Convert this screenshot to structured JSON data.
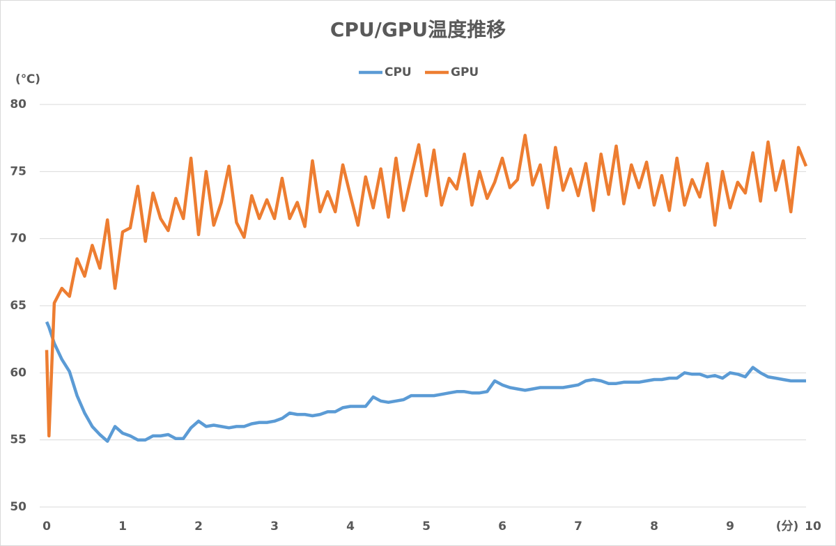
{
  "chart_data": {
    "type": "line",
    "title": "CPU/GPU温度推移",
    "y_label": "(℃)",
    "x_label": "(分)",
    "x": [
      0,
      0.03,
      0.1,
      0.2,
      0.3,
      0.4,
      0.5,
      0.6,
      0.7,
      0.8,
      0.9,
      1,
      1.1,
      1.2,
      1.3,
      1.4,
      1.5,
      1.6,
      1.7,
      1.8,
      1.9,
      2,
      2.1,
      2.2,
      2.3,
      2.4,
      2.5,
      2.6,
      2.7,
      2.8,
      2.9,
      3,
      3.1,
      3.2,
      3.3,
      3.4,
      3.5,
      3.6,
      3.7,
      3.8,
      3.9,
      4,
      4.1,
      4.2,
      4.3,
      4.4,
      4.5,
      4.6,
      4.7,
      4.8,
      4.9,
      5,
      5.1,
      5.2,
      5.3,
      5.4,
      5.5,
      5.6,
      5.7,
      5.8,
      5.9,
      6,
      6.1,
      6.2,
      6.3,
      6.4,
      6.5,
      6.6,
      6.7,
      6.8,
      6.9,
      7,
      7.1,
      7.2,
      7.3,
      7.4,
      7.5,
      7.6,
      7.7,
      7.8,
      7.9,
      8,
      8.1,
      8.2,
      8.3,
      8.4,
      8.5,
      8.6,
      8.7,
      8.8,
      8.9,
      9,
      9.1,
      9.2,
      9.3,
      9.4,
      9.5,
      9.6,
      9.7,
      9.8,
      9.9,
      10
    ],
    "series": [
      {
        "name": "CPU",
        "color": "#5b9bd5",
        "values": [
          63.8,
          63.4,
          62.2,
          61,
          60.1,
          58.3,
          57,
          56,
          55.4,
          54.9,
          56,
          55.5,
          55.3,
          55,
          55,
          55.3,
          55.3,
          55.4,
          55.1,
          55.1,
          55.9,
          56.4,
          56,
          56.1,
          56,
          55.9,
          56,
          56,
          56.2,
          56.3,
          56.3,
          56.4,
          56.6,
          57,
          56.9,
          56.9,
          56.8,
          56.9,
          57.1,
          57.1,
          57.4,
          57.5,
          57.5,
          57.5,
          58.2,
          57.9,
          57.8,
          57.9,
          58,
          58.3,
          58.3,
          58.3,
          58.3,
          58.4,
          58.5,
          58.6,
          58.6,
          58.5,
          58.5,
          58.6,
          59.4,
          59.1,
          58.9,
          58.8,
          58.7,
          58.8,
          58.9,
          58.9,
          58.9,
          58.9,
          59,
          59.1,
          59.4,
          59.5,
          59.4,
          59.2,
          59.2,
          59.3,
          59.3,
          59.3,
          59.4,
          59.5,
          59.5,
          59.6,
          59.6,
          60,
          59.9,
          59.9,
          59.7,
          59.8,
          59.6,
          60,
          59.9,
          59.7,
          60.4,
          60,
          59.7,
          59.6,
          59.5,
          59.4,
          59.4,
          59.4
        ]
      },
      {
        "name": "GPU",
        "color": "#ed7d31",
        "values": [
          61.7,
          55.3,
          65.2,
          66.3,
          65.7,
          68.5,
          67.2,
          69.5,
          67.8,
          71.4,
          66.3,
          70.5,
          70.8,
          73.9,
          69.8,
          73.4,
          71.5,
          70.6,
          73,
          71.5,
          76,
          70.3,
          75,
          71,
          72.7,
          75.4,
          71.2,
          70.1,
          73.2,
          71.5,
          72.9,
          71.5,
          74.5,
          71.5,
          72.7,
          70.9,
          75.8,
          72,
          73.5,
          72,
          75.5,
          73.2,
          71,
          74.6,
          72.3,
          75.2,
          71.6,
          76,
          72.1,
          74.6,
          77,
          73.2,
          76.6,
          72.5,
          74.5,
          73.7,
          76.3,
          72.5,
          75,
          73,
          74.2,
          76,
          73.8,
          74.4,
          77.7,
          74,
          75.5,
          72.3,
          76.8,
          73.6,
          75.2,
          73.2,
          75.6,
          72.1,
          76.3,
          73.3,
          76.9,
          72.6,
          75.5,
          73.8,
          75.7,
          72.5,
          74.7,
          72.1,
          76,
          72.5,
          74.4,
          73.1,
          75.6,
          71,
          75,
          72.3,
          74.2,
          73.4,
          76.4,
          72.8,
          77.2,
          73.6,
          75.8,
          72,
          76.8,
          75.4
        ]
      }
    ],
    "xlim": [
      0,
      10
    ],
    "xticks": [
      0,
      1,
      2,
      3,
      4,
      5,
      6,
      7,
      8,
      9,
      10
    ],
    "ylim": [
      50,
      80
    ],
    "yticks": [
      50,
      55,
      60,
      65,
      70,
      75,
      80
    ],
    "grid": true,
    "legend": "top"
  }
}
